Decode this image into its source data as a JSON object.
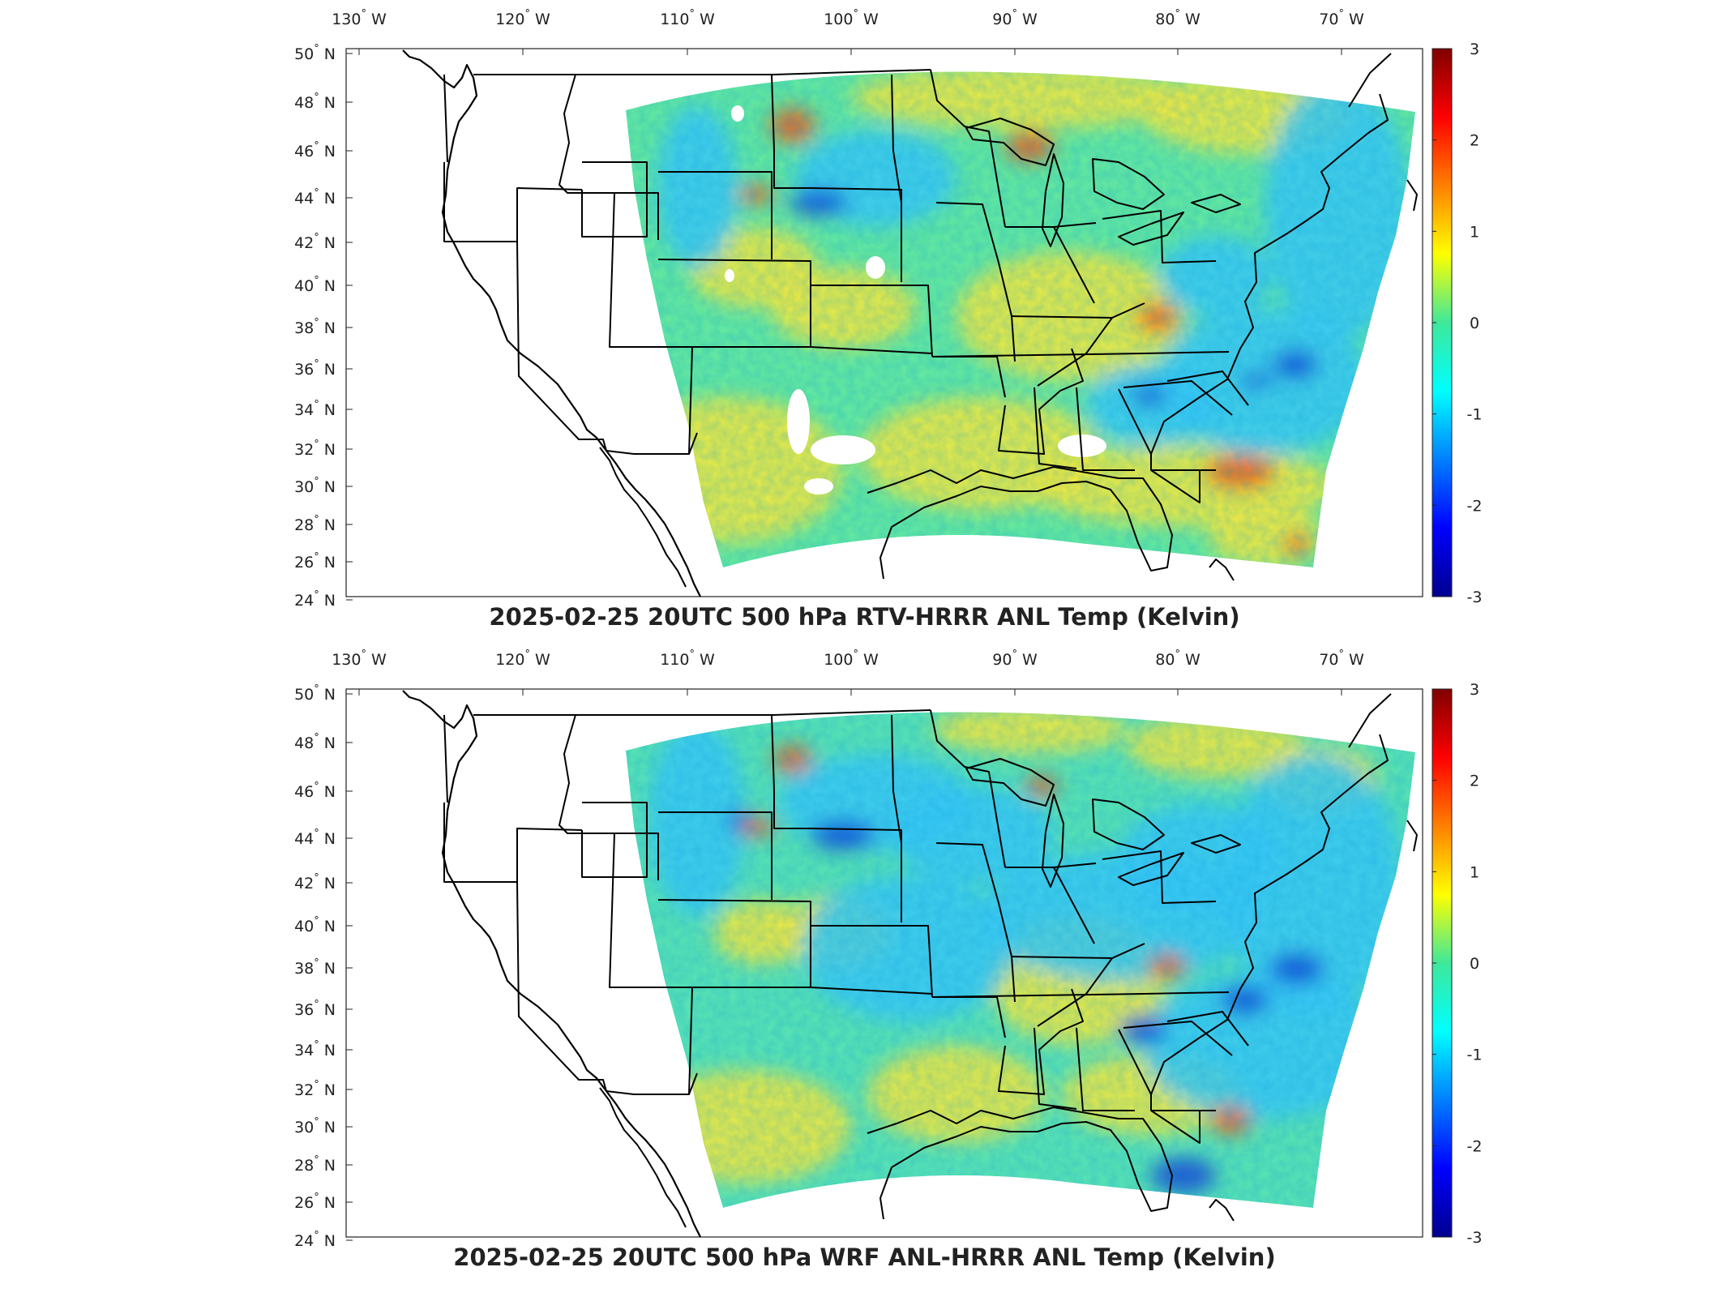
{
  "maps": [
    {
      "title": "2025-02-25 20UTC 500 hPa RTV-HRRR ANL Temp (Kelvin)",
      "variant": "rtv",
      "colorbar": {
        "min": -3,
        "max": 3,
        "ticks": [
          "3",
          "2",
          "1",
          "0",
          "-1",
          "-2",
          "-3"
        ]
      }
    },
    {
      "title": "2025-02-25 20UTC 500 hPa WRF ANL-HRRR ANL Temp (Kelvin)",
      "variant": "wrf",
      "colorbar": {
        "min": -3,
        "max": 3,
        "ticks": [
          "3",
          "2",
          "1",
          "0",
          "-1",
          "-2",
          "-3"
        ]
      }
    }
  ],
  "lon_labels": [
    "130",
    "120",
    "110",
    "100",
    "90",
    "80",
    "70"
  ],
  "lon_hemisphere": "W",
  "lat_labels": [
    "50",
    "48",
    "46",
    "44",
    "42",
    "40",
    "38",
    "36",
    "34",
    "32",
    "30",
    "28",
    "26",
    "24"
  ],
  "lat_hemisphere": "N",
  "degree_symbol": "°",
  "colors": {
    "base_field": "#63e8a0",
    "warm": "#f5e83c",
    "hot": "#ef5a18",
    "cool": "#38c8f5",
    "cold": "#1447d6",
    "missing": "#ffffff",
    "boundary": "#000000"
  }
}
